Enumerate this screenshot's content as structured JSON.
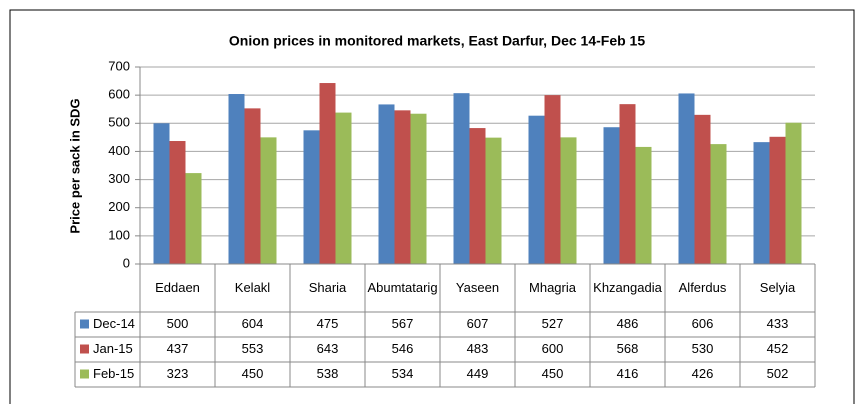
{
  "chart_data": {
    "type": "bar",
    "title": "Onion prices in monitored markets, East Darfur, Dec 14-Feb 15",
    "y_label": "Price per sack in SDG",
    "categories": [
      "Eddaen",
      "Kelakl",
      "Sharia",
      "Abumtatarig",
      "Yaseen",
      "Mhagria",
      "Khzangadia",
      "Alferdus",
      "Selyia"
    ],
    "series": [
      {
        "name": "Dec-14",
        "color": "#4f81bd",
        "values": [
          500,
          604,
          475,
          567,
          607,
          527,
          486,
          606,
          433
        ]
      },
      {
        "name": "Jan-15",
        "color": "#c0504d",
        "values": [
          437,
          553,
          643,
          546,
          483,
          600,
          568,
          530,
          452
        ]
      },
      {
        "name": "Feb-15",
        "color": "#9bbb59",
        "values": [
          323,
          450,
          538,
          534,
          449,
          450,
          416,
          426,
          502
        ]
      }
    ],
    "ylim": [
      0,
      700
    ],
    "yticks": [
      0,
      100,
      200,
      300,
      400,
      500,
      600,
      700
    ],
    "grid": true,
    "data_table": true
  }
}
